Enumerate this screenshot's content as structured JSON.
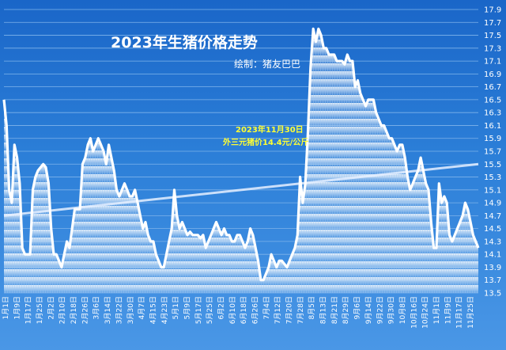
{
  "chart_data": {
    "type": "line",
    "title": "2023年生猪价格走势",
    "subtitle": "绘制：猪友巴巴",
    "annotation": [
      "2023年11月30日",
      "外三元猪价14.4元/公斤"
    ],
    "ylim": [
      13.5,
      17.9
    ],
    "yticks": [
      "13.5",
      "13.7",
      "13.9",
      "14.1",
      "14.3",
      "14.5",
      "14.7",
      "14.9",
      "15.1",
      "15.3",
      "15.5",
      "15.7",
      "15.9",
      "16.1",
      "16.3",
      "16.5",
      "16.7",
      "16.9",
      "17.1",
      "17.3",
      "17.5",
      "17.7",
      "17.9"
    ],
    "xticks": [
      "1月1日",
      "1月9日",
      "1月17日",
      "1月25日",
      "2月2日",
      "2月10日",
      "2月18日",
      "2月26日",
      "3月6日",
      "3月14日",
      "3月22日",
      "3月30日",
      "4月7日",
      "4月15日",
      "4月23日",
      "5月1日",
      "5月9日",
      "5月17日",
      "5月25日",
      "6月2日",
      "6月10日",
      "6月18日",
      "6月26日",
      "7月4日",
      "7月12日",
      "7月20日",
      "7月28日",
      "8月5日",
      "8月13日",
      "8月21日",
      "8月29日",
      "9月6日",
      "9月14日",
      "9月22日",
      "9月30日",
      "10月8日",
      "10月16日",
      "10月24日",
      "11月1日",
      "11月9日",
      "11月17日",
      "11月25日"
    ],
    "series": [
      {
        "values": [
          16.5,
          16.1,
          15.1,
          14.9,
          15.8,
          15.6,
          15.2,
          14.2,
          14.1,
          14.1,
          14.1,
          15.1,
          15.3,
          15.4,
          15.45,
          15.5,
          15.45,
          15.2,
          14.5,
          14.1,
          14.1,
          14.0,
          13.9,
          14.1,
          14.3,
          14.2,
          14.5,
          14.8,
          14.8,
          14.8,
          15.5,
          15.6,
          15.8,
          15.9,
          15.7,
          15.8,
          15.9,
          15.8,
          15.7,
          15.5,
          15.8,
          15.6,
          15.4,
          15.1,
          15.0,
          15.1,
          15.2,
          15.1,
          15.0,
          15.0,
          15.1,
          14.9,
          14.7,
          14.5,
          14.6,
          14.4,
          14.3,
          14.3,
          14.1,
          14.0,
          13.9,
          13.9,
          14.1,
          14.3,
          14.5,
          15.1,
          14.7,
          14.5,
          14.6,
          14.5,
          14.4,
          14.45,
          14.4,
          14.4,
          14.4,
          14.35,
          14.4,
          14.2,
          14.3,
          14.4,
          14.5,
          14.6,
          14.5,
          14.4,
          14.5,
          14.4,
          14.4,
          14.3,
          14.3,
          14.4,
          14.4,
          14.3,
          14.2,
          14.3,
          14.5,
          14.4,
          14.2,
          14.0,
          13.7,
          13.7,
          13.8,
          13.9,
          14.1,
          14.0,
          13.9,
          14.0,
          14.0,
          13.95,
          13.9,
          14.0,
          14.1,
          14.2,
          14.4,
          15.3,
          14.9,
          15.2,
          16.0,
          17.0,
          17.6,
          17.4,
          17.6,
          17.5,
          17.3,
          17.3,
          17.2,
          17.2,
          17.2,
          17.1,
          17.1,
          17.1,
          17.05,
          17.2,
          17.1,
          17.1,
          16.7,
          16.8,
          16.6,
          16.5,
          16.4,
          16.5,
          16.5,
          16.5,
          16.3,
          16.2,
          16.1,
          16.1,
          16.0,
          15.9,
          15.9,
          15.8,
          15.7,
          15.8,
          15.8,
          15.6,
          15.3,
          15.1,
          15.2,
          15.3,
          15.4,
          15.6,
          15.4,
          15.2,
          15.1,
          14.6,
          14.2,
          14.2,
          15.2,
          14.9,
          15.0,
          14.9,
          14.4,
          14.3,
          14.4,
          14.5,
          14.6,
          14.7,
          14.9,
          14.8,
          14.6,
          14.4,
          14.3,
          14.2
        ]
      }
    ],
    "trendline": [
      14.7,
      15.5
    ]
  }
}
